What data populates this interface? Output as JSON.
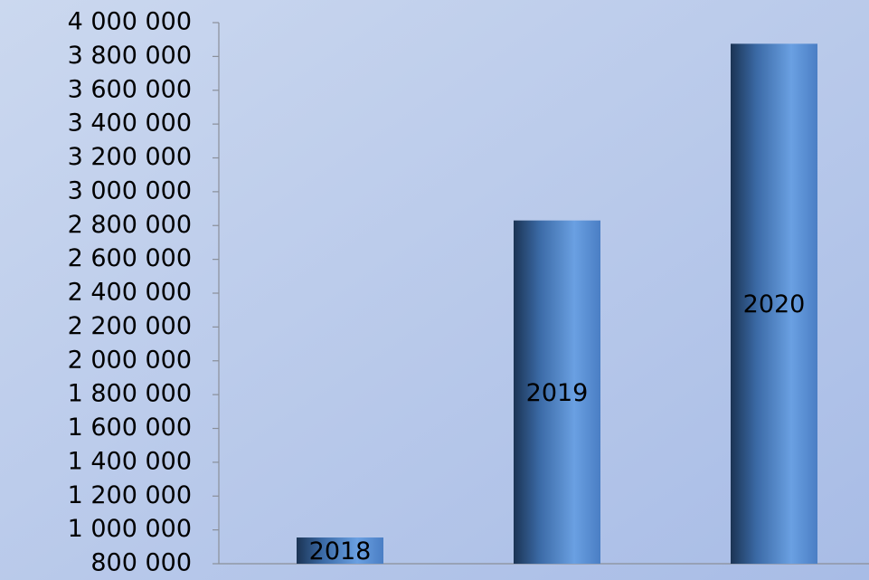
{
  "chart_data": {
    "type": "bar",
    "categories": [
      "2018",
      "2019",
      "2020"
    ],
    "values": [
      955000,
      2830000,
      3875000
    ],
    "color": "#4f7fc0",
    "ylim": [
      800000,
      4000000
    ],
    "yticks": [
      {
        "value": 800000,
        "label": "800 000"
      },
      {
        "value": 1000000,
        "label": "1 000 000"
      },
      {
        "value": 1200000,
        "label": "1 200 000"
      },
      {
        "value": 1400000,
        "label": "1 400 000"
      },
      {
        "value": 1600000,
        "label": "1 600 000"
      },
      {
        "value": 1800000,
        "label": "1 800 000"
      },
      {
        "value": 2000000,
        "label": "2 000 000"
      },
      {
        "value": 2200000,
        "label": "2 200 000"
      },
      {
        "value": 2400000,
        "label": "2 400 000"
      },
      {
        "value": 2600000,
        "label": "2 600 000"
      },
      {
        "value": 2800000,
        "label": "2 800 000"
      },
      {
        "value": 3000000,
        "label": "3 000 000"
      },
      {
        "value": 3200000,
        "label": "3 200 000"
      },
      {
        "value": 3400000,
        "label": "3 400 000"
      },
      {
        "value": 3600000,
        "label": "3 600 000"
      },
      {
        "value": 3800000,
        "label": "3 800 000"
      },
      {
        "value": 4000000,
        "label": "4 000 000"
      }
    ],
    "grid": false
  }
}
